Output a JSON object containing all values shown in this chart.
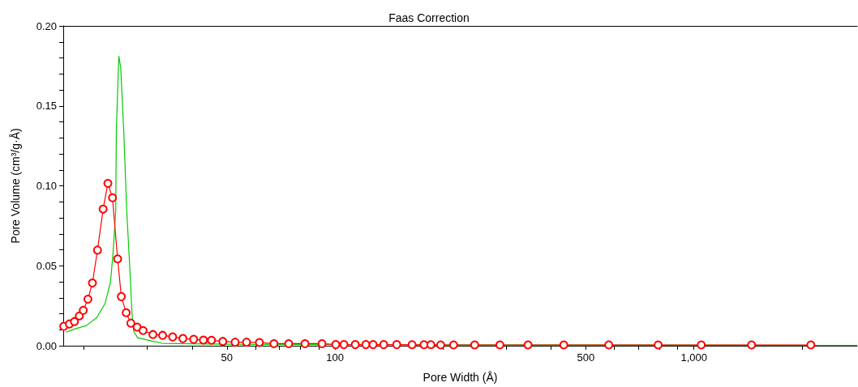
{
  "chart_data": {
    "type": "line",
    "title": "Faas Correction",
    "xlabel": "Pore Width (Å)",
    "ylabel": "Pore Volume (cm³/g·Å)",
    "log": "x",
    "grid": false,
    "line_style": "solid",
    "xlim": [
      17.5,
      2850
    ],
    "ylim": [
      0,
      0.2
    ],
    "xticks": [
      {
        "value": 20,
        "label": null
      },
      {
        "value": 30,
        "label": null
      },
      {
        "value": 40,
        "label": null
      },
      50,
      {
        "value": 60,
        "label": null
      },
      {
        "value": 70,
        "label": null
      },
      {
        "value": 80,
        "label": null
      },
      {
        "value": 90,
        "label": null
      },
      100,
      {
        "value": 200,
        "label": null
      },
      {
        "value": 300,
        "label": null
      },
      {
        "value": 400,
        "label": null
      },
      500,
      {
        "value": 600,
        "label": null
      },
      {
        "value": 700,
        "label": null
      },
      {
        "value": 800,
        "label": null
      },
      {
        "value": 900,
        "label": null
      },
      {
        "value": 1000,
        "label": "1,000"
      },
      {
        "value": 2000,
        "label": null
      }
    ],
    "yticks": [
      {
        "value": 0,
        "label": "0.00"
      },
      {
        "value": 0.01,
        "label": null
      },
      {
        "value": 0.02,
        "label": null
      },
      {
        "value": 0.03,
        "label": null
      },
      {
        "value": 0.04,
        "label": null
      },
      {
        "value": 0.05,
        "label": "0.05"
      },
      {
        "value": 0.06,
        "label": null
      },
      {
        "value": 0.07,
        "label": null
      },
      {
        "value": 0.08,
        "label": null
      },
      {
        "value": 0.09,
        "label": null
      },
      {
        "value": 0.1,
        "label": "0.10"
      },
      {
        "value": 0.11,
        "label": null
      },
      {
        "value": 0.12,
        "label": null
      },
      {
        "value": 0.13,
        "label": null
      },
      {
        "value": 0.14,
        "label": null
      },
      {
        "value": 0.15,
        "label": "0.15"
      },
      {
        "value": 0.16,
        "label": null
      },
      {
        "value": 0.17,
        "label": null
      },
      {
        "value": 0.18,
        "label": null
      },
      {
        "value": 0.19,
        "label": null
      },
      {
        "value": 0.2,
        "label": "0.20"
      }
    ],
    "series": [
      {
        "color": "#00cc00",
        "marker": "none",
        "x": [
          17.8,
          18.9,
          20.3,
          21.7,
          22.9,
          23.7,
          24.1,
          24.5,
          24.6,
          24.9,
          25.0,
          25.3,
          25.8,
          26.3,
          26.8,
          27.2,
          27.5,
          28.2,
          30.8,
          33.0,
          40,
          60,
          2850
        ],
        "values": [
          0.0085,
          0.0106,
          0.0126,
          0.0176,
          0.0266,
          0.04,
          0.0588,
          0.084,
          0.134,
          0.171,
          0.181,
          0.174,
          0.134,
          0.084,
          0.05,
          0.02,
          0.009,
          0.005,
          0.003,
          0.0015,
          0.0012,
          0.0008,
          0.0002
        ]
      },
      {
        "color": "#ff0000",
        "marker": "circle",
        "x": [
          17.55,
          18.2,
          18.8,
          19.4,
          19.9,
          20.5,
          21.1,
          21.8,
          22.6,
          23.3,
          24.0,
          24.8,
          25.4,
          26.2,
          27.0,
          28.1,
          29.2,
          31.1,
          33.1,
          35.3,
          37.7,
          40.4,
          43.0,
          45.3,
          48.7,
          52.7,
          56.7,
          61.6,
          67.6,
          74.3,
          82.5,
          92.0,
          100.5,
          105.9,
          113.9,
          121.9,
          127.7,
          136.7,
          148.6,
          164,
          177,
          185,
          197,
          214,
          245,
          288,
          345,
          434,
          579,
          795,
          1048,
          1447,
          2117
        ],
        "values": [
          0.0121,
          0.0136,
          0.0151,
          0.0186,
          0.0221,
          0.0291,
          0.0392,
          0.0598,
          0.0854,
          0.1015,
          0.0925,
          0.0543,
          0.0307,
          0.0206,
          0.0141,
          0.0116,
          0.0095,
          0.007,
          0.0065,
          0.0055,
          0.0045,
          0.004,
          0.0035,
          0.0034,
          0.0027,
          0.0022,
          0.0022,
          0.002,
          0.0013,
          0.0013,
          0.0013,
          0.0013,
          0.0007,
          0.0007,
          0.0007,
          0.0007,
          0.0007,
          0.0007,
          0.0007,
          0.0006,
          0.0006,
          0.0006,
          0.0005,
          0.0005,
          0.0005,
          0.0005,
          0.0005,
          0.0005,
          0.0005,
          0.0005,
          0.0005,
          0.0005,
          0.0005
        ]
      }
    ]
  }
}
